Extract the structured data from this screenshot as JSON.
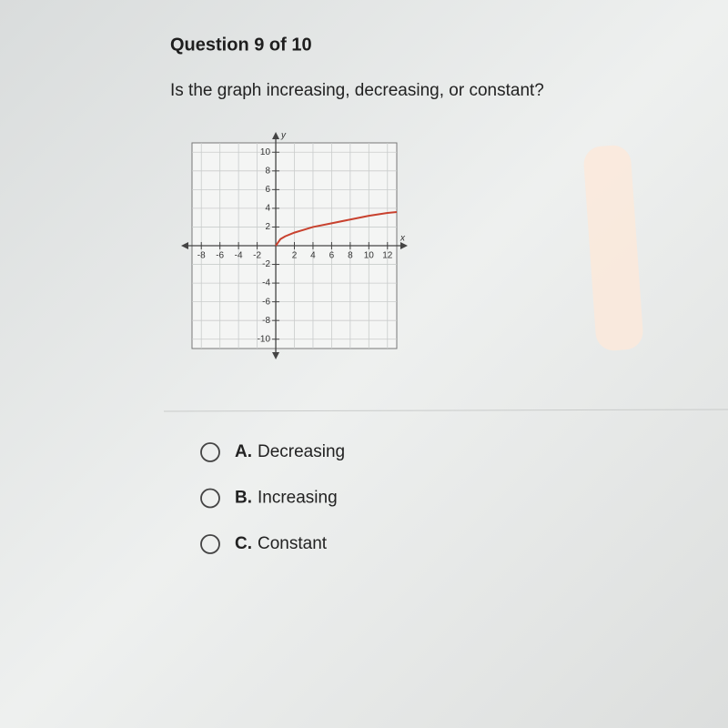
{
  "header": {
    "title": "Question 9 of 10"
  },
  "question": "Is the graph increasing, decreasing, or constant?",
  "chart_data": {
    "type": "line",
    "x_label": "x",
    "y_label": "y",
    "x": [
      0,
      0.5,
      1,
      2,
      3,
      4,
      6,
      8,
      10,
      12,
      13
    ],
    "values": [
      0,
      0.7,
      1,
      1.4,
      1.7,
      2,
      2.4,
      2.8,
      3.2,
      3.5,
      3.6
    ],
    "color": "#c8412e",
    "xlim": [
      -9,
      13
    ],
    "ylim": [
      -11,
      11
    ],
    "xticks": [
      -8,
      -6,
      -4,
      -2,
      2,
      4,
      6,
      8,
      10,
      12
    ],
    "yticks": [
      10,
      8,
      6,
      4,
      2,
      -2,
      -4,
      -6,
      -8,
      -10
    ],
    "grid": true
  },
  "options": [
    {
      "letter": "A.",
      "text": "Decreasing"
    },
    {
      "letter": "B.",
      "text": "Increasing"
    },
    {
      "letter": "C.",
      "text": "Constant"
    }
  ]
}
